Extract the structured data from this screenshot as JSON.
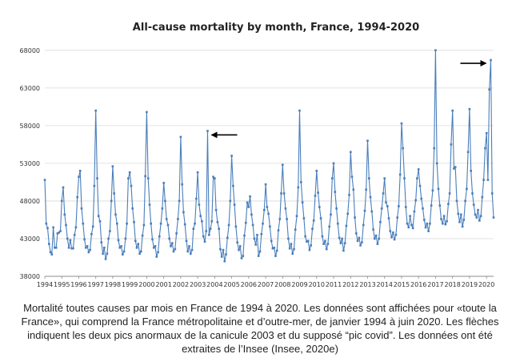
{
  "caption": "Mortalité toutes causes par mois en France de 1994 à 2020. Les données sont affichées pour «toute la France», qui comprend la France métropolitaine et d’outre-mer, de janvier 1994 à juin 2020. Les flèches indiquent les deux pics anormaux de la canicule 2003 et du supposé “pic covid”. Les données ont été extraites de l’Insee (Insee, 2020e)",
  "chart_data": {
    "type": "line",
    "title": "All-cause mortality by month, France, 1994-2020",
    "xlabel": "",
    "ylabel": "",
    "ylim": [
      38000,
      70000
    ],
    "yticks": [
      38000,
      43000,
      48000,
      53000,
      58000,
      63000,
      68000
    ],
    "ytick_labels": [
      "38000",
      "43000",
      "48000",
      "53000",
      "58000",
      "63000",
      "68000"
    ],
    "xticks": [
      "1994",
      "1995",
      "1996",
      "1997",
      "1998",
      "1999",
      "2000",
      "2001",
      "2002",
      "2003",
      "2004",
      "2005",
      "2006",
      "2007",
      "2008",
      "2009",
      "2010",
      "2011",
      "2012",
      "2013",
      "2014",
      "2015",
      "2016",
      "2017",
      "2018",
      "2019",
      "2020"
    ],
    "grid": "horizontal",
    "legend": "none",
    "color": "#4a7ebb",
    "arrows": [
      {
        "target": "2003-08",
        "value": 57300,
        "label": ""
      },
      {
        "target": "2020-04",
        "value": 66700,
        "label": ""
      }
    ],
    "series": [
      {
        "name": "",
        "start": "1994-01",
        "values": [
          50800,
          45000,
          44400,
          42300,
          41200,
          40900,
          44500,
          41800,
          41800,
          43700,
          43800,
          44000,
          48000,
          49800,
          46200,
          44800,
          43000,
          41800,
          42800,
          41700,
          41700,
          43500,
          44500,
          48500,
          51200,
          52000,
          47000,
          45000,
          42900,
          41800,
          42000,
          41200,
          41500,
          43600,
          44600,
          50000,
          60000,
          51000,
          46000,
          45300,
          42500,
          41000,
          41800,
          40300,
          41000,
          43000,
          44000,
          48000,
          52600,
          49000,
          46200,
          45000,
          42800,
          41800,
          42000,
          40900,
          41300,
          43000,
          45000,
          51000,
          51800,
          50000,
          47000,
          45200,
          42700,
          41800,
          42300,
          41000,
          41300,
          43400,
          44800,
          51300,
          59800,
          51000,
          47500,
          45000,
          42900,
          41800,
          42000,
          40600,
          41200,
          43300,
          45000,
          47000,
          50400,
          48000,
          45600,
          44800,
          43000,
          42000,
          42400,
          41300,
          41600,
          43700,
          45600,
          48000,
          56500,
          50200,
          46500,
          44900,
          42700,
          41300,
          42000,
          41000,
          41500,
          44300,
          45000,
          48300,
          51800,
          47500,
          46000,
          45300,
          43300,
          42600,
          44000,
          57300,
          43500,
          44300,
          45300,
          51200,
          51000,
          46800,
          45200,
          44300,
          41600,
          40600,
          41500,
          40000,
          40900,
          43100,
          44800,
          48000,
          54000,
          50000,
          47500,
          44600,
          42500,
          41500,
          42000,
          40400,
          40700,
          43400,
          45100,
          47800,
          47200,
          48600,
          46200,
          44800,
          43000,
          42200,
          43500,
          40700,
          41300,
          43600,
          45000,
          46800,
          50200,
          47200,
          46300,
          44600,
          42700,
          41700,
          41800,
          40700,
          41400,
          44100,
          45600,
          49000,
          52800,
          49000,
          47000,
          45600,
          43000,
          41700,
          42300,
          41000,
          41600,
          44200,
          46000,
          49800,
          60000,
          50500,
          47800,
          45700,
          43300,
          42600,
          42700,
          41500,
          42100,
          44300,
          45400,
          48700,
          52000,
          49100,
          47200,
          45700,
          43300,
          42300,
          42700,
          41600,
          42300,
          44600,
          46200,
          51000,
          53000,
          49200,
          47000,
          45000,
          43100,
          42400,
          43000,
          41400,
          42400,
          44700,
          46300,
          48800,
          54500,
          51200,
          49500,
          45800,
          43700,
          42700,
          43100,
          42100,
          42500,
          44800,
          46700,
          49500,
          56000,
          51000,
          48500,
          46600,
          44200,
          43000,
          43400,
          42300,
          43000,
          45200,
          47000,
          49000,
          51000,
          47800,
          47300,
          45700,
          44000,
          43200,
          43800,
          42900,
          43500,
          45800,
          47300,
          51500,
          58300,
          55000,
          51000,
          47200,
          45000,
          44500,
          46000,
          44800,
          44400,
          46600,
          48100,
          51000,
          52200,
          50000,
          48300,
          47000,
          45500,
          44500,
          45000,
          44000,
          45000,
          47400,
          49400,
          55000,
          68000,
          53000,
          49600,
          47400,
          45600,
          45000,
          46000,
          44900,
          45300,
          47600,
          49000,
          55500,
          60000,
          52300,
          52500,
          48000,
          46300,
          45200,
          46200,
          44600,
          45500,
          48000,
          49600,
          54500,
          60200,
          52000,
          49000,
          47500,
          46200,
          45800,
          46800,
          45400,
          46000,
          48500,
          50800,
          55000,
          57000,
          50800,
          62800,
          66700,
          49000,
          45800
        ]
      }
    ]
  }
}
